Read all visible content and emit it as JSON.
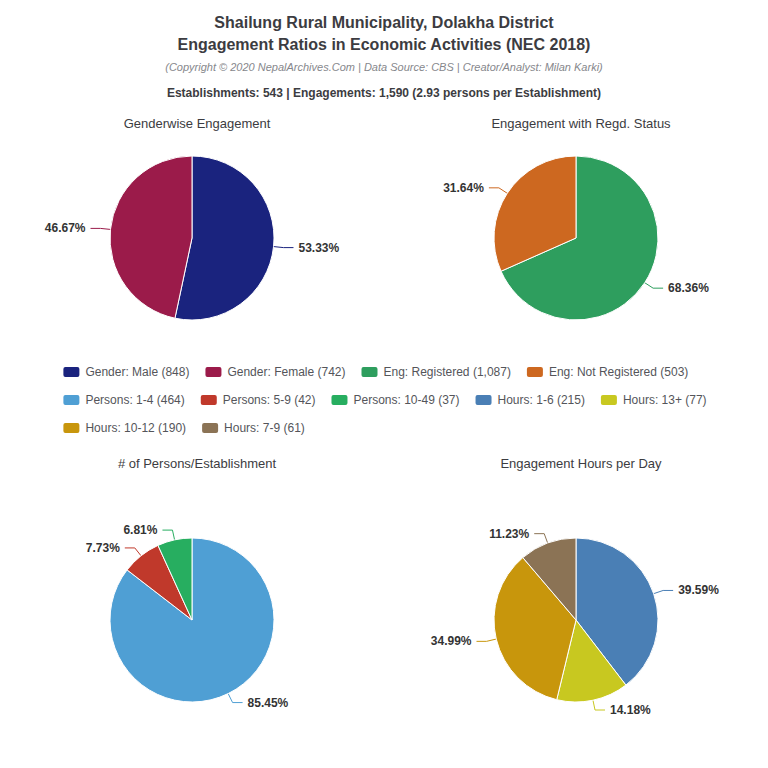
{
  "title": "Shailung Rural Municipality, Dolakha District\nEngagement Ratios in Economic Activities (NEC 2018)",
  "subtitle": "(Copyright © 2020 NepalArchives.Com | Data Source: CBS | Creator/Analyst: Milan Karki)",
  "annotations": [
    "Establishments: 543 | Engagements: 1,590 (2.93 persons per Establishment)"
  ],
  "chart_data": [
    {
      "type": "pie",
      "title": "Genderwise Engagement",
      "categories": [
        "Gender: Male (848)",
        "Gender: Female (742)"
      ],
      "values": [
        53.33,
        46.67
      ],
      "value_labels": [
        "53.33%",
        "46.67%"
      ],
      "colors": [
        "#1a237e",
        "#9b1b4a"
      ],
      "data_labels": true
    },
    {
      "type": "pie",
      "title": "Engagement with Regd. Status",
      "categories": [
        "Eng: Registered (1,087)",
        "Eng: Not Registered (503)"
      ],
      "values": [
        68.36,
        31.64
      ],
      "value_labels": [
        "68.36%",
        "31.64%"
      ],
      "colors": [
        "#2e9e5e",
        "#cd6820"
      ],
      "data_labels": true
    },
    {
      "type": "pie",
      "title": "# of Persons/Establishment",
      "categories": [
        "Persons: 1-4 (464)",
        "Persons: 5-9 (42)",
        "Persons: 10-49 (37)"
      ],
      "values": [
        85.45,
        7.73,
        6.81
      ],
      "value_labels": [
        "85.45%",
        "7.73%",
        "6.81%"
      ],
      "colors": [
        "#4f9fd4",
        "#c0392b",
        "#27ae60"
      ],
      "data_labels": true
    },
    {
      "type": "pie",
      "title": "Engagement Hours per Day",
      "categories": [
        "Hours: 1-6 (215)",
        "Hours: 13+ (77)",
        "Hours: 10-12 (190)",
        "Hours: 7-9 (61)"
      ],
      "values": [
        39.59,
        14.18,
        34.99,
        11.23
      ],
      "value_labels": [
        "39.59%",
        "14.18%",
        "34.99%",
        "11.23%"
      ],
      "colors": [
        "#4a7fb5",
        "#c8c820",
        "#c8960c",
        "#8b7355"
      ],
      "data_labels": true
    }
  ]
}
